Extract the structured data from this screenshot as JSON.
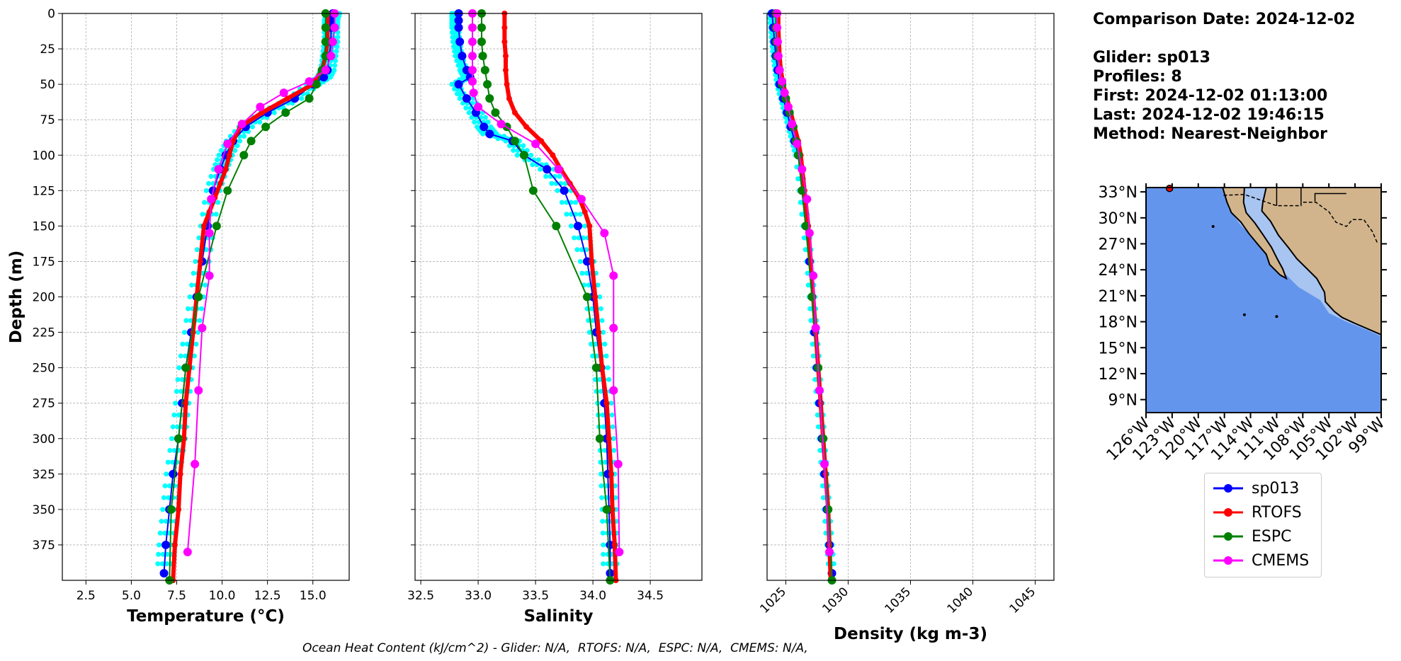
{
  "info": {
    "comparison_date": "Comparison Date: 2024-12-02",
    "glider": "Glider: sp013",
    "profiles": "Profiles: 8",
    "first": "First: 2024-12-02 01:13:00",
    "last": "Last: 2024-12-02 19:46:15",
    "method": "Method: Nearest-Neighbor"
  },
  "footer": "Ocean Heat Content (kJ/cm^2) - Glider: N/A,  RTOFS: N/A,  ESPC: N/A,  CMEMS: N/A,",
  "colors": {
    "sp013": "#0000ff",
    "RTOFS": "#ff0000",
    "ESPC": "#008000",
    "CMEMS": "#ff00ff",
    "profiles": "#00ffff",
    "ocean": "#6495ed",
    "shelf": "#a8c4f0",
    "land": "#d2b48c"
  },
  "legend": [
    {
      "name": "sp013",
      "color": "#0000ff"
    },
    {
      "name": "RTOFS",
      "color": "#ff0000"
    },
    {
      "name": "ESPC",
      "color": "#008000"
    },
    {
      "name": "CMEMS",
      "color": "#ff00ff"
    }
  ],
  "chart_data": [
    {
      "type": "line",
      "xlabel": "Temperature (°C)",
      "ylabel": "Depth (m)",
      "xlim": [
        1.2,
        17.0
      ],
      "ylim": [
        400,
        0
      ],
      "xticks": [
        2.5,
        5.0,
        7.5,
        10.0,
        12.5,
        15.0
      ],
      "xtick_labels": [
        "2.5",
        "5.0",
        "7.5",
        "10.0",
        "12.5",
        "15.0"
      ],
      "yticks": [
        0,
        25,
        50,
        75,
        100,
        125,
        150,
        175,
        200,
        225,
        250,
        275,
        300,
        325,
        350,
        375
      ],
      "ytick_labels": [
        "0",
        "25",
        "50",
        "75",
        "100",
        "125",
        "150",
        "175",
        "200",
        "225",
        "250",
        "275",
        "300",
        "325",
        "350",
        "375"
      ],
      "grid": true,
      "series": [
        {
          "name": "sp013",
          "depth": [
            0,
            5,
            10,
            20,
            30,
            40,
            45,
            50,
            60,
            70,
            80,
            90,
            100,
            110,
            125,
            150,
            175,
            200,
            225,
            250,
            275,
            300,
            325,
            350,
            375,
            395
          ],
          "values": [
            16.1,
            16.0,
            16.0,
            16.0,
            15.9,
            15.8,
            15.6,
            15.0,
            14.0,
            12.5,
            11.3,
            10.6,
            10.2,
            9.9,
            9.5,
            9.2,
            8.9,
            8.6,
            8.3,
            8.0,
            7.8,
            7.6,
            7.3,
            7.1,
            6.9,
            6.8
          ]
        },
        {
          "name": "RTOFS",
          "depth": [
            0,
            10,
            20,
            30,
            40,
            50,
            60,
            70,
            80,
            90,
            100,
            110,
            120,
            130,
            140,
            150,
            175,
            200,
            225,
            250,
            275,
            300,
            325,
            350,
            375,
            400
          ],
          "values": [
            15.8,
            15.8,
            15.8,
            15.7,
            15.5,
            15.0,
            13.6,
            12.2,
            11.0,
            10.6,
            10.4,
            10.2,
            9.9,
            9.6,
            9.3,
            9.0,
            8.8,
            8.6,
            8.4,
            8.2,
            8.0,
            7.9,
            7.7,
            7.6,
            7.4,
            7.3
          ]
        },
        {
          "name": "ESPC",
          "depth": [
            0,
            10,
            20,
            30,
            40,
            50,
            60,
            70,
            80,
            90,
            100,
            125,
            150,
            200,
            250,
            300,
            350,
            400
          ],
          "values": [
            15.7,
            15.7,
            15.7,
            15.7,
            15.5,
            15.2,
            14.8,
            13.5,
            12.4,
            11.6,
            11.2,
            10.3,
            9.7,
            8.7,
            8.0,
            7.6,
            7.2,
            7.1
          ]
        },
        {
          "name": "CMEMS",
          "depth": [
            0,
            10,
            20,
            30,
            40,
            48,
            56,
            66,
            78,
            92,
            110,
            131,
            155,
            185,
            222,
            266,
            318,
            380
          ],
          "values": [
            16.2,
            16.2,
            16.1,
            16.0,
            15.7,
            14.8,
            13.4,
            12.1,
            11.1,
            10.3,
            9.8,
            9.4,
            9.3,
            9.3,
            8.9,
            8.7,
            8.5,
            8.1
          ]
        }
      ]
    },
    {
      "type": "line",
      "xlabel": "Salinity",
      "xlim": [
        32.45,
        34.95
      ],
      "ylim": [
        400,
        0
      ],
      "xticks": [
        32.5,
        33.0,
        33.5,
        34.0,
        34.5
      ],
      "xtick_labels": [
        "32.5",
        "33.0",
        "33.5",
        "34.0",
        "34.5"
      ],
      "grid": true,
      "series": [
        {
          "name": "sp013",
          "depth": [
            0,
            5,
            10,
            20,
            30,
            40,
            45,
            50,
            60,
            70,
            80,
            85,
            90,
            100,
            110,
            125,
            150,
            175,
            200,
            225,
            250,
            275,
            300,
            325,
            350,
            375,
            395
          ],
          "values": [
            32.83,
            32.83,
            32.83,
            32.84,
            32.86,
            32.9,
            32.93,
            32.83,
            32.9,
            32.98,
            33.05,
            33.1,
            33.3,
            33.4,
            33.6,
            33.75,
            33.87,
            33.95,
            34.0,
            34.03,
            34.07,
            34.1,
            34.12,
            34.13,
            34.14,
            34.15,
            34.15
          ]
        },
        {
          "name": "RTOFS",
          "depth": [
            0,
            10,
            20,
            30,
            40,
            50,
            60,
            70,
            80,
            90,
            100,
            110,
            120,
            130,
            140,
            150,
            175,
            200,
            225,
            250,
            275,
            300,
            325,
            350,
            375,
            400
          ],
          "values": [
            33.23,
            33.23,
            33.23,
            33.24,
            33.24,
            33.25,
            33.27,
            33.32,
            33.42,
            33.55,
            33.65,
            33.72,
            33.8,
            33.88,
            33.93,
            33.97,
            33.99,
            34.02,
            34.05,
            34.08,
            34.12,
            34.14,
            34.16,
            34.17,
            34.19,
            34.2
          ]
        },
        {
          "name": "ESPC",
          "depth": [
            0,
            10,
            20,
            30,
            40,
            50,
            60,
            70,
            80,
            90,
            100,
            125,
            150,
            200,
            250,
            300,
            350,
            400
          ],
          "values": [
            33.03,
            33.03,
            33.03,
            33.04,
            33.06,
            33.08,
            33.1,
            33.15,
            33.25,
            33.32,
            33.4,
            33.48,
            33.68,
            33.95,
            34.03,
            34.06,
            34.12,
            34.15
          ]
        },
        {
          "name": "CMEMS",
          "depth": [
            0,
            10,
            20,
            30,
            40,
            48,
            56,
            66,
            78,
            92,
            110,
            131,
            155,
            185,
            222,
            266,
            318,
            380
          ],
          "values": [
            32.95,
            32.95,
            32.95,
            32.95,
            32.95,
            32.95,
            32.96,
            33.0,
            33.2,
            33.5,
            33.7,
            33.9,
            34.1,
            34.18,
            34.18,
            34.18,
            34.22,
            34.23
          ]
        }
      ]
    },
    {
      "type": "line",
      "xlabel": "Density (kg m-3)",
      "xlim": [
        1023.5,
        1046.5
      ],
      "ylim": [
        400,
        0
      ],
      "xticks": [
        1025,
        1030,
        1035,
        1040,
        1045
      ],
      "xtick_labels": [
        "1025",
        "1030",
        "1035",
        "1040",
        "1045"
      ],
      "grid": true,
      "series": [
        {
          "name": "sp013",
          "depth": [
            0,
            10,
            20,
            30,
            40,
            50,
            60,
            70,
            80,
            90,
            100,
            125,
            150,
            175,
            200,
            225,
            250,
            275,
            300,
            325,
            350,
            375,
            395
          ],
          "values": [
            1023.9,
            1024.0,
            1024.1,
            1024.2,
            1024.35,
            1024.5,
            1024.8,
            1025.1,
            1025.4,
            1025.7,
            1026.0,
            1026.3,
            1026.6,
            1026.9,
            1027.1,
            1027.3,
            1027.5,
            1027.7,
            1027.9,
            1028.1,
            1028.3,
            1028.5,
            1028.7
          ]
        },
        {
          "name": "RTOFS",
          "depth": [
            0,
            10,
            20,
            30,
            40,
            50,
            60,
            70,
            80,
            90,
            100,
            125,
            150,
            175,
            200,
            225,
            250,
            275,
            300,
            325,
            350,
            375,
            400
          ],
          "values": [
            1024.4,
            1024.4,
            1024.45,
            1024.5,
            1024.6,
            1024.8,
            1025.1,
            1025.4,
            1025.7,
            1026.0,
            1026.2,
            1026.5,
            1026.8,
            1027.0,
            1027.2,
            1027.4,
            1027.6,
            1027.8,
            1028.0,
            1028.2,
            1028.4,
            1028.5,
            1028.6
          ]
        },
        {
          "name": "ESPC",
          "depth": [
            0,
            10,
            20,
            30,
            40,
            50,
            60,
            70,
            80,
            90,
            100,
            125,
            150,
            200,
            250,
            300,
            350,
            400
          ],
          "values": [
            1024.2,
            1024.2,
            1024.25,
            1024.3,
            1024.5,
            1024.7,
            1025.0,
            1025.3,
            1025.6,
            1025.8,
            1026.0,
            1026.3,
            1026.6,
            1027.1,
            1027.6,
            1028.0,
            1028.4,
            1028.7
          ]
        },
        {
          "name": "CMEMS",
          "depth": [
            0,
            10,
            20,
            30,
            40,
            48,
            56,
            66,
            78,
            92,
            110,
            131,
            155,
            185,
            222,
            266,
            318,
            380
          ],
          "values": [
            1024.3,
            1024.3,
            1024.35,
            1024.4,
            1024.5,
            1024.7,
            1024.9,
            1025.2,
            1025.5,
            1025.9,
            1026.3,
            1026.7,
            1026.9,
            1027.2,
            1027.4,
            1027.7,
            1028.1,
            1028.5
          ]
        }
      ]
    }
  ],
  "map": {
    "lat_labels": [
      "33°N",
      "30°N",
      "27°N",
      "24°N",
      "21°N",
      "18°N",
      "15°N",
      "12°N",
      "9°N"
    ],
    "lat_values": [
      33,
      30,
      27,
      24,
      21,
      18,
      15,
      12,
      9
    ],
    "lon_labels": [
      "126°W",
      "123°W",
      "120°W",
      "117°W",
      "114°W",
      "111°W",
      "108°W",
      "105°W",
      "102°W",
      "99°W"
    ],
    "lon_values": [
      -126,
      -123,
      -120,
      -117,
      -114,
      -111,
      -108,
      -105,
      -102,
      -99
    ],
    "lat_range": [
      7.5,
      33.5
    ],
    "lon_range": [
      -126,
      -99
    ],
    "glider_position": {
      "lon": -123.3,
      "lat": 33.4
    }
  }
}
